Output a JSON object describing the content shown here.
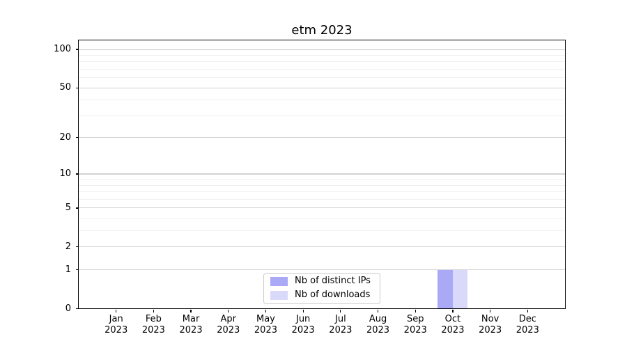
{
  "chart_data": {
    "type": "bar",
    "title": "etm 2023",
    "xlabel": "",
    "ylabel": "",
    "yscale": "log1p",
    "grid": true,
    "legend_position": "bottom-center",
    "categories": [
      "Jan\n2023",
      "Feb\n2023",
      "Mar\n2023",
      "Apr\n2023",
      "May\n2023",
      "Jun\n2023",
      "Jul\n2023",
      "Aug\n2023",
      "Sep\n2023",
      "Oct\n2023",
      "Nov\n2023",
      "Dec\n2023"
    ],
    "series": [
      {
        "name": "Nb of distinct IPs",
        "key": "distinct-ips",
        "color": "#a9a9f6",
        "values": [
          0,
          0,
          0,
          0,
          0,
          0,
          0,
          0,
          0,
          1,
          0,
          0
        ]
      },
      {
        "name": "Nb of downloads",
        "key": "downloads",
        "color": "#d9d9fa",
        "values": [
          0,
          0,
          0,
          0,
          0,
          0,
          0,
          0,
          0,
          1,
          0,
          0
        ]
      }
    ],
    "yticks": [
      0,
      1,
      2,
      5,
      10,
      20,
      50,
      100
    ],
    "minor_gridlines": [
      3,
      4,
      6,
      7,
      8,
      9,
      30,
      40,
      60,
      70,
      80,
      90
    ],
    "ylim": [
      0,
      117
    ],
    "colors": {
      "background": "#ffffff",
      "spine": "#000000",
      "grid_major": "#d2d2d2",
      "grid_minor": "#f0f0f0",
      "text": "#000000"
    }
  }
}
